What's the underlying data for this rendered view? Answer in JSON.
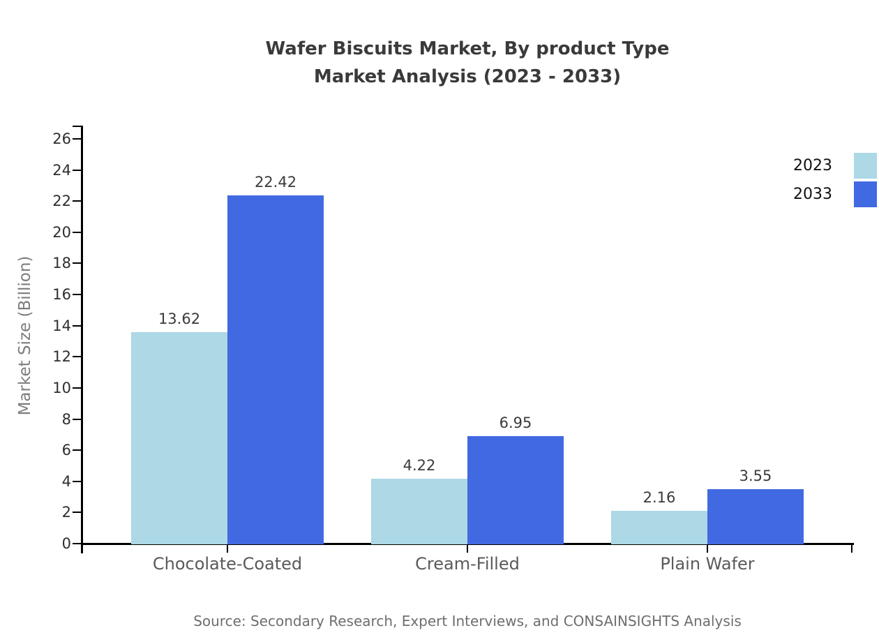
{
  "chart_data": {
    "type": "bar",
    "title": "Wafer Biscuits Market, By product Type",
    "subtitle": "Market Analysis (2023 - 2033)",
    "xlabel": "",
    "ylabel": "Market Size (Billion)",
    "categories": [
      "Chocolate-Coated",
      "Cream-Filled",
      "Plain Wafer"
    ],
    "series": [
      {
        "name": "2023",
        "color": "#ADD8E6",
        "values": [
          13.62,
          4.22,
          2.16
        ]
      },
      {
        "name": "2033",
        "color": "#4169E1",
        "values": [
          22.42,
          6.95,
          3.55
        ]
      }
    ],
    "yticks": [
      0,
      2,
      4,
      6,
      8,
      10,
      12,
      14,
      16,
      18,
      20,
      22,
      24,
      26
    ],
    "ylim": [
      0,
      27
    ],
    "grid": false,
    "legend_position": "upper-right-outside",
    "value_labels_shown": true
  },
  "source_note": "Source: Secondary Research, Expert Interviews, and CONSAINSIGHTS Analysis",
  "colors": {
    "background": "#ffffff",
    "axis": "#000000",
    "title_text": "#3a3a3a",
    "tick_label_text": "#2e2e2e",
    "category_label_text": "#5a5a5a",
    "y_axis_title_text": "#7d7d7d",
    "value_label_text": "#3a3a3a",
    "legend_text": "#111111",
    "source_text": "#6e6e6e"
  }
}
